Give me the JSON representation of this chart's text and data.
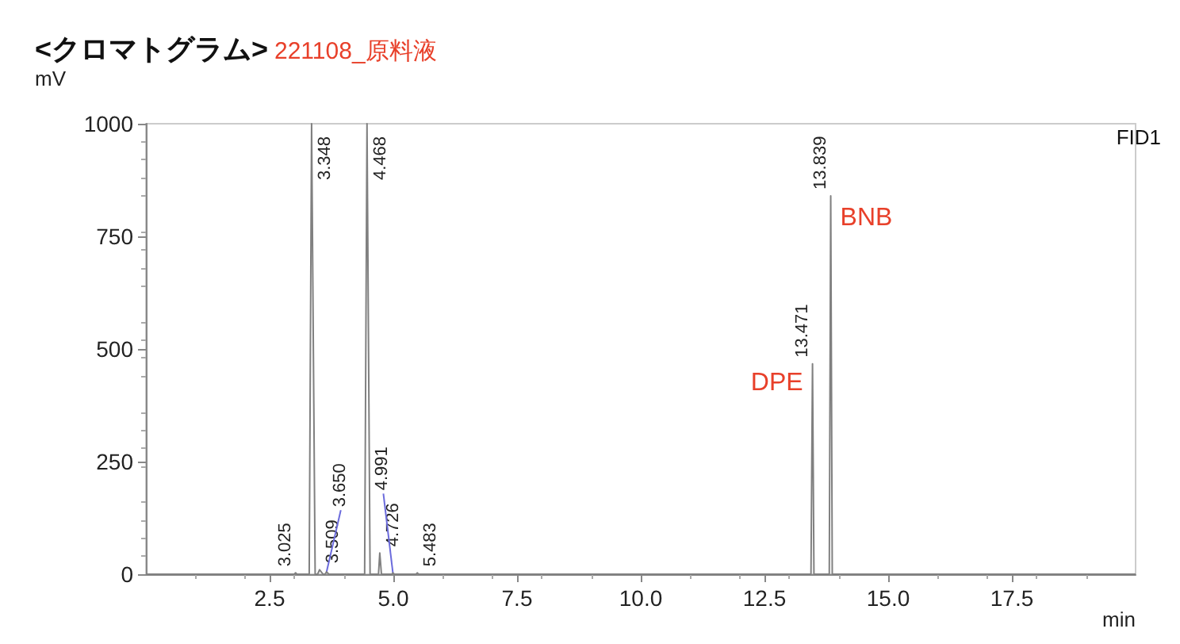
{
  "chart_data": {
    "type": "line",
    "title": "<クロマトグラム>",
    "subtitle": "221108_原料液",
    "ylabel": "mV",
    "xlabel": "min",
    "x": [
      0,
      3.0,
      3.025,
      3.05,
      3.3,
      3.348,
      3.42,
      3.47,
      3.509,
      3.58,
      3.62,
      3.65,
      3.7,
      4.42,
      4.468,
      4.53,
      4.7,
      4.726,
      4.76,
      4.97,
      4.991,
      5.02,
      5.46,
      5.483,
      5.51,
      13.44,
      13.471,
      13.5,
      13.81,
      13.839,
      13.87,
      20
    ],
    "series": [
      {
        "color": "#808080",
        "values": [
          0,
          0,
          3,
          0,
          0,
          1000,
          0,
          0,
          10,
          0,
          0,
          5,
          0,
          0,
          1000,
          0,
          0,
          47,
          0,
          0,
          3,
          0,
          0,
          3,
          0,
          0,
          467,
          0,
          0,
          840,
          0,
          0
        ]
      }
    ],
    "xlim": [
      0,
      20
    ],
    "ylim": [
      0,
      1000
    ],
    "xticks": [
      {
        "value": 2.5,
        "label": "2.5"
      },
      {
        "value": 5,
        "label": "5.0"
      },
      {
        "value": 7.5,
        "label": "7.5"
      },
      {
        "value": 10,
        "label": "10.0"
      },
      {
        "value": 12.5,
        "label": "12.5"
      },
      {
        "value": 15,
        "label": "15.0"
      },
      {
        "value": 17.5,
        "label": "17.5"
      }
    ],
    "yticks": [
      0,
      250,
      500,
      750,
      1000
    ],
    "grid": false,
    "marker": "none",
    "line_style": "solid",
    "annotations": [
      {
        "text": "3.025",
        "x": 3.025,
        "y": 3
      },
      {
        "text": "3.348",
        "x": 3.348,
        "y": 1000
      },
      {
        "text": "3.509",
        "x": 3.509,
        "y": 10
      },
      {
        "text": "3.650",
        "x": 3.65,
        "y": 5
      },
      {
        "text": "4.468",
        "x": 4.468,
        "y": 1000
      },
      {
        "text": "4.726",
        "x": 4.726,
        "y": 47
      },
      {
        "text": "4.991",
        "x": 4.991,
        "y": 3
      },
      {
        "text": "5.483",
        "x": 5.483,
        "y": 3
      },
      {
        "text": "13.471",
        "x": 13.471,
        "y": 467
      },
      {
        "text": "13.839",
        "x": 13.839,
        "y": 840
      },
      {
        "text": "DPE",
        "x": 13.471,
        "y": 467
      },
      {
        "text": "BNB",
        "x": 13.839,
        "y": 840
      },
      "FID1"
    ]
  }
}
